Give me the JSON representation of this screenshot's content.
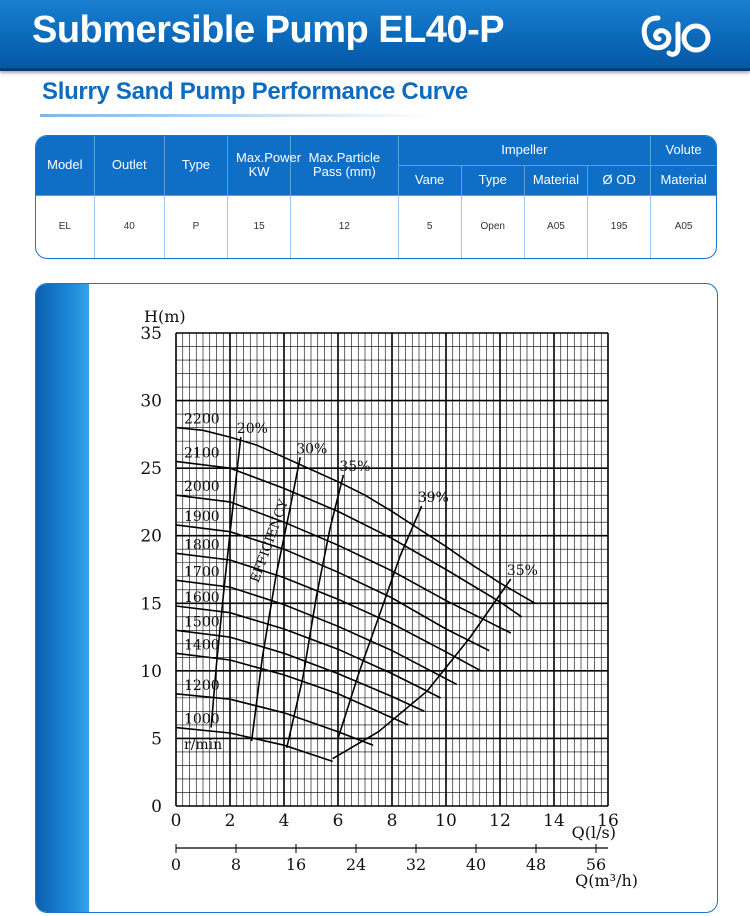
{
  "header": {
    "title": "Submersible Pump EL40-P",
    "logo": "cjo-logo"
  },
  "subtitle": "Slurry Sand Pump Performance Curve",
  "spec_table": {
    "headers": {
      "model": "Model",
      "outlet": "Outlet",
      "type": "Type",
      "power": "Max.Power KW",
      "particle": "Max.Particle Pass (mm)",
      "impeller": "Impeller",
      "volute": "Volute",
      "vane": "Vane",
      "imp_type": "Type",
      "imp_material": "Material",
      "od": "Ø OD",
      "vol_material": "Material"
    },
    "row": {
      "model": "EL",
      "outlet": "40",
      "type": "P",
      "power": "15",
      "particle": "12",
      "vane": "5",
      "imp_type": "Open",
      "imp_material": "A05",
      "od": "195",
      "vol_material": "A05"
    }
  },
  "chart_data": {
    "type": "line",
    "ylabel": "H(m)",
    "xlabel": "Q(l/s)",
    "x2label": "Q(m³/h)",
    "xlim": [
      0,
      16
    ],
    "ylim": [
      0,
      35
    ],
    "xticks": [
      0,
      2,
      4,
      6,
      8,
      10,
      12,
      14,
      16
    ],
    "yticks": [
      0,
      5,
      10,
      15,
      20,
      25,
      30,
      35
    ],
    "x2ticks": [
      0,
      8,
      16,
      24,
      32,
      40,
      48,
      56
    ],
    "speed_unit_label": "r/min",
    "efficiency_label": "EFFICIENCY",
    "series": [
      {
        "name": "2200",
        "x": [
          0,
          1,
          2,
          3,
          4,
          5,
          6,
          7,
          8,
          9,
          10,
          11,
          12,
          13.3
        ],
        "y": [
          28,
          27.8,
          27.3,
          26.7,
          25.8,
          24.9,
          24.0,
          23.0,
          21.8,
          20.5,
          19.2,
          17.8,
          16.5,
          15.0
        ]
      },
      {
        "name": "2100",
        "x": [
          0,
          2,
          4,
          6,
          8,
          10,
          12,
          12.8
        ],
        "y": [
          25.5,
          25.0,
          23.5,
          21.8,
          19.8,
          17.5,
          15.1,
          14.0
        ]
      },
      {
        "name": "2000",
        "x": [
          0,
          2,
          4,
          6,
          8,
          10,
          12.4
        ],
        "y": [
          23.0,
          22.5,
          21.0,
          19.3,
          17.4,
          15.2,
          12.8
        ]
      },
      {
        "name": "1900",
        "x": [
          0,
          2,
          4,
          6,
          8,
          10,
          11.6
        ],
        "y": [
          20.8,
          20.3,
          19.0,
          17.3,
          15.4,
          13.1,
          11.5
        ]
      },
      {
        "name": "1800",
        "x": [
          0,
          2,
          4,
          6,
          8,
          10,
          11.3
        ],
        "y": [
          18.7,
          18.2,
          16.9,
          15.3,
          13.5,
          11.4,
          10.0
        ]
      },
      {
        "name": "1700",
        "x": [
          0,
          2,
          4,
          6,
          8,
          10.4
        ],
        "y": [
          16.7,
          16.2,
          14.9,
          13.3,
          11.5,
          9.0
        ]
      },
      {
        "name": "1600",
        "x": [
          0,
          2,
          4,
          6,
          8,
          9.8
        ],
        "y": [
          14.8,
          14.3,
          13.1,
          11.6,
          9.8,
          8.0
        ]
      },
      {
        "name": "1500",
        "x": [
          0,
          2,
          4,
          6,
          8,
          9.2
        ],
        "y": [
          13.0,
          12.5,
          11.3,
          9.8,
          8.1,
          7.0
        ]
      },
      {
        "name": "1400",
        "x": [
          0,
          2,
          4,
          6,
          8.6
        ],
        "y": [
          11.3,
          10.8,
          9.7,
          8.3,
          6.0
        ]
      },
      {
        "name": "1200",
        "x": [
          0,
          2,
          4,
          6,
          7.3
        ],
        "y": [
          8.3,
          7.9,
          6.9,
          5.5,
          4.5
        ]
      },
      {
        "name": "1000",
        "x": [
          0,
          2,
          4,
          5.8
        ],
        "y": [
          5.8,
          5.4,
          4.5,
          3.3
        ]
      }
    ],
    "efficiency_curves": [
      {
        "label": "20%",
        "x": [
          1.3,
          1.5,
          1.8,
          2.1,
          2.4
        ],
        "y": [
          5.8,
          10.5,
          16.5,
          22.0,
          27.3
        ]
      },
      {
        "label": "30%",
        "x": [
          2.8,
          3.2,
          3.7,
          4.2,
          4.6
        ],
        "y": [
          4.8,
          11.0,
          17.0,
          21.8,
          25.8
        ]
      },
      {
        "label": "35%",
        "x": [
          4.1,
          4.7,
          5.2,
          5.7,
          6.2
        ],
        "y": [
          4.3,
          9.5,
          15.5,
          20.5,
          24.5
        ]
      },
      {
        "label": "39%",
        "x": [
          6.0,
          6.8,
          7.6,
          8.3,
          9.1
        ],
        "y": [
          5.0,
          10.0,
          14.5,
          18.5,
          22.2
        ]
      },
      {
        "label": "35%",
        "x": [
          5.8,
          7.5,
          9.3,
          10.9,
          12.4
        ],
        "y": [
          3.5,
          5.5,
          8.5,
          12.5,
          16.8
        ]
      }
    ]
  }
}
